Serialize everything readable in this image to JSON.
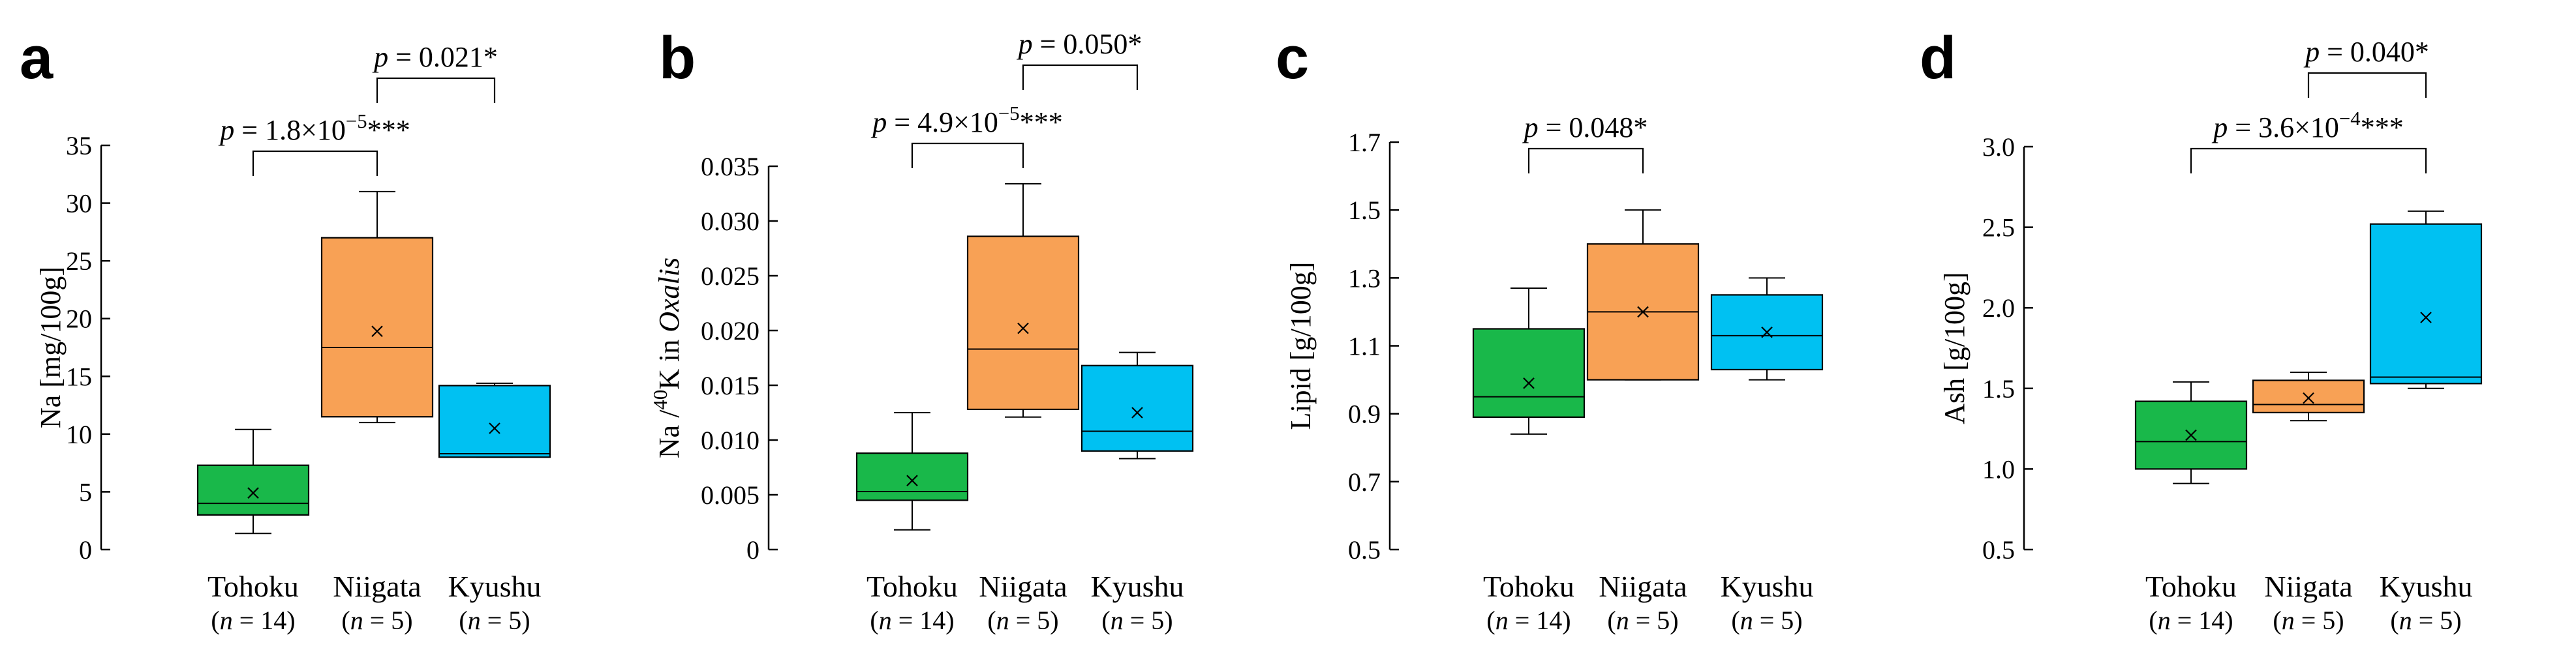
{
  "colors": {
    "Tohoku": "#19b84a",
    "Niigata": "#f8a155",
    "Kyushu": "#00c1f2"
  },
  "chart_data": [
    {
      "type": "box",
      "panel": "a",
      "ylabel_parts": [
        {
          "t": "Na  [mg/100g]",
          "i": false,
          "s": false
        }
      ],
      "ylim": [
        0,
        35
      ],
      "yticks": [
        0,
        5,
        10,
        15,
        20,
        25,
        30,
        35
      ],
      "yticklabels": [
        "0",
        "5",
        "10",
        "15",
        "20",
        "25",
        "30",
        "35"
      ],
      "categories": [
        "Tohoku",
        "Niigata",
        "Kyushu"
      ],
      "n_labels": [
        [
          "(",
          "n",
          " = 14)"
        ],
        [
          "(",
          "n",
          " = 5)"
        ],
        [
          "(",
          "n",
          " = 5)"
        ]
      ],
      "boxes": [
        {
          "min": 1.4,
          "q1": 3.0,
          "median": 4.0,
          "q3": 7.3,
          "max": 10.4,
          "mean": 4.9
        },
        {
          "min": 11.0,
          "q1": 11.5,
          "median": 17.5,
          "q3": 27.0,
          "max": 31.0,
          "mean": 18.9
        },
        {
          "min": 8.0,
          "q1": 8.0,
          "median": 8.3,
          "q3": 14.2,
          "max": 14.4,
          "mean": 10.5
        }
      ],
      "comparisons": [
        {
          "groups": [
            1,
            2
          ],
          "parts": [
            {
              "t": "p",
              "i": true,
              "s": false
            },
            {
              "t": " = 0.021*",
              "i": false,
              "s": false
            }
          ]
        },
        {
          "groups": [
            0,
            1
          ],
          "parts": [
            {
              "t": "p",
              "i": true,
              "s": false
            },
            {
              "t": " = 1.8×10",
              "i": false,
              "s": false
            },
            {
              "t": "−5",
              "i": false,
              "s": true
            },
            {
              "t": "***",
              "i": false,
              "s": false
            }
          ]
        }
      ]
    },
    {
      "type": "box",
      "panel": "b",
      "ylabel_parts": [
        {
          "t": "Na /",
          "i": false,
          "s": false
        },
        {
          "t": "40",
          "i": false,
          "s": true
        },
        {
          "t": "K in ",
          "i": false,
          "s": false
        },
        {
          "t": "Oxalis",
          "i": true,
          "s": false
        }
      ],
      "ylim": [
        0,
        0.035
      ],
      "yticks": [
        0,
        0.005,
        0.01,
        0.015,
        0.02,
        0.025,
        0.03,
        0.035
      ],
      "yticklabels": [
        "0",
        "0.005",
        "0.010",
        "0.015",
        "0.020",
        "0.025",
        "0.030",
        "0.035"
      ],
      "categories": [
        "Tohoku",
        "Niigata",
        "Kyushu"
      ],
      "n_labels": [
        [
          "(",
          "n",
          " = 14)"
        ],
        [
          "(",
          "n",
          " = 5)"
        ],
        [
          "(",
          "n",
          " = 5)"
        ]
      ],
      "boxes": [
        {
          "min": 0.0018,
          "q1": 0.0045,
          "median": 0.0053,
          "q3": 0.0088,
          "max": 0.0125,
          "mean": 0.0063
        },
        {
          "min": 0.0121,
          "q1": 0.0128,
          "median": 0.0183,
          "q3": 0.0286,
          "max": 0.0334,
          "mean": 0.0202
        },
        {
          "min": 0.0083,
          "q1": 0.009,
          "median": 0.0108,
          "q3": 0.0168,
          "max": 0.018,
          "mean": 0.0125
        }
      ],
      "comparisons": [
        {
          "groups": [
            1,
            2
          ],
          "parts": [
            {
              "t": "p",
              "i": true,
              "s": false
            },
            {
              "t": " = 0.050*",
              "i": false,
              "s": false
            }
          ]
        },
        {
          "groups": [
            0,
            1
          ],
          "parts": [
            {
              "t": "p",
              "i": true,
              "s": false
            },
            {
              "t": " = 4.9×10",
              "i": false,
              "s": false
            },
            {
              "t": "−5",
              "i": false,
              "s": true
            },
            {
              "t": "***",
              "i": false,
              "s": false
            }
          ]
        }
      ]
    },
    {
      "type": "box",
      "panel": "c",
      "ylabel_parts": [
        {
          "t": "Lipid [g/100g]",
          "i": false,
          "s": false
        }
      ],
      "ylim": [
        0.5,
        1.7
      ],
      "yticks": [
        0.5,
        0.7,
        0.9,
        1.1,
        1.3,
        1.5,
        1.7
      ],
      "yticklabels": [
        "0.5",
        "0.7",
        "0.9",
        "1.1",
        "1.3",
        "1.5",
        "1.7"
      ],
      "categories": [
        "Tohoku",
        "Niigata",
        "Kyushu"
      ],
      "n_labels": [
        [
          "(",
          "n",
          " = 14)"
        ],
        [
          "(",
          "n",
          " = 5)"
        ],
        [
          "(",
          "n",
          " = 5)"
        ]
      ],
      "boxes": [
        {
          "min": 0.84,
          "q1": 0.89,
          "median": 0.95,
          "q3": 1.15,
          "max": 1.27,
          "mean": 0.99
        },
        {
          "min": 1.0,
          "q1": 1.0,
          "median": 1.2,
          "q3": 1.4,
          "max": 1.5,
          "mean": 1.2
        },
        {
          "min": 1.0,
          "q1": 1.03,
          "median": 1.13,
          "q3": 1.25,
          "max": 1.3,
          "mean": 1.14
        }
      ],
      "comparisons": [
        {
          "groups": [
            0,
            1
          ],
          "parts": [
            {
              "t": "p",
              "i": true,
              "s": false
            },
            {
              "t": " = 0.048*",
              "i": false,
              "s": false
            }
          ]
        }
      ]
    },
    {
      "type": "box",
      "panel": "d",
      "ylabel_parts": [
        {
          "t": "Ash [g/100g]",
          "i": false,
          "s": false
        }
      ],
      "ylim": [
        0.5,
        3.0
      ],
      "yticks": [
        0.5,
        1.0,
        1.5,
        2.0,
        2.5,
        3.0
      ],
      "yticklabels": [
        "0.5",
        "1.0",
        "1.5",
        "2.0",
        "2.5",
        "3.0"
      ],
      "categories": [
        "Tohoku",
        "Niigata",
        "Kyushu"
      ],
      "n_labels": [
        [
          "(",
          "n",
          " = 14)"
        ],
        [
          "(",
          "n",
          " = 5)"
        ],
        [
          "(",
          "n",
          " = 5)"
        ]
      ],
      "boxes": [
        {
          "min": 0.91,
          "q1": 1.0,
          "median": 1.17,
          "q3": 1.42,
          "max": 1.54,
          "mean": 1.21
        },
        {
          "min": 1.3,
          "q1": 1.35,
          "median": 1.4,
          "q3": 1.55,
          "max": 1.6,
          "mean": 1.44
        },
        {
          "min": 1.5,
          "q1": 1.53,
          "median": 1.57,
          "q3": 2.52,
          "max": 2.6,
          "mean": 1.94
        }
      ],
      "comparisons": [
        {
          "groups": [
            1,
            2
          ],
          "parts": [
            {
              "t": "p",
              "i": true,
              "s": false
            },
            {
              "t": " = 0.040*",
              "i": false,
              "s": false
            }
          ]
        },
        {
          "groups": [
            0,
            2
          ],
          "parts": [
            {
              "t": "p",
              "i": true,
              "s": false
            },
            {
              "t": " = 3.6×10",
              "i": false,
              "s": false
            },
            {
              "t": "−4",
              "i": false,
              "s": true
            },
            {
              "t": "***",
              "i": false,
              "s": false
            }
          ]
        }
      ]
    }
  ]
}
